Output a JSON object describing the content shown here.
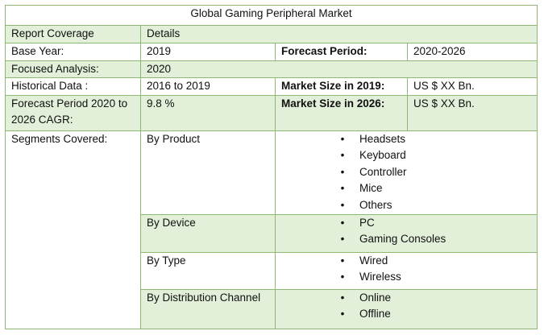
{
  "title": "Global Gaming Peripheral Market",
  "header": {
    "col1": "Report Coverage",
    "col2": "Details"
  },
  "base_year": {
    "label": "Base Year:",
    "value": "2019",
    "label2": "Forecast Period:",
    "value2": "2020-2026"
  },
  "focused_analysis": {
    "label": "Focused Analysis:",
    "value": "2020"
  },
  "historical": {
    "label": "Historical Data :",
    "value": "2016 to 2019",
    "label2": "Market Size in 2019:",
    "value2": "US $ XX Bn."
  },
  "cagr": {
    "label": "Forecast Period 2020 to 2026 CAGR:",
    "value": "9.8 %",
    "label2": "Market Size in 2026:",
    "value2": "US $ XX Bn."
  },
  "segments": {
    "label": "Segments Covered:",
    "bullet_glyph": "•",
    "groups": [
      {
        "name": "By Product",
        "items": [
          "Headsets",
          "Keyboard",
          "Controller",
          "Mice",
          "Others"
        ]
      },
      {
        "name": "By Device",
        "items": [
          "PC",
          "Gaming Consoles"
        ]
      },
      {
        "name": "By Type",
        "items": [
          "Wired",
          "Wireless"
        ]
      },
      {
        "name": "By Distribution Channel",
        "items": [
          "Online",
          "Offline"
        ]
      }
    ]
  }
}
